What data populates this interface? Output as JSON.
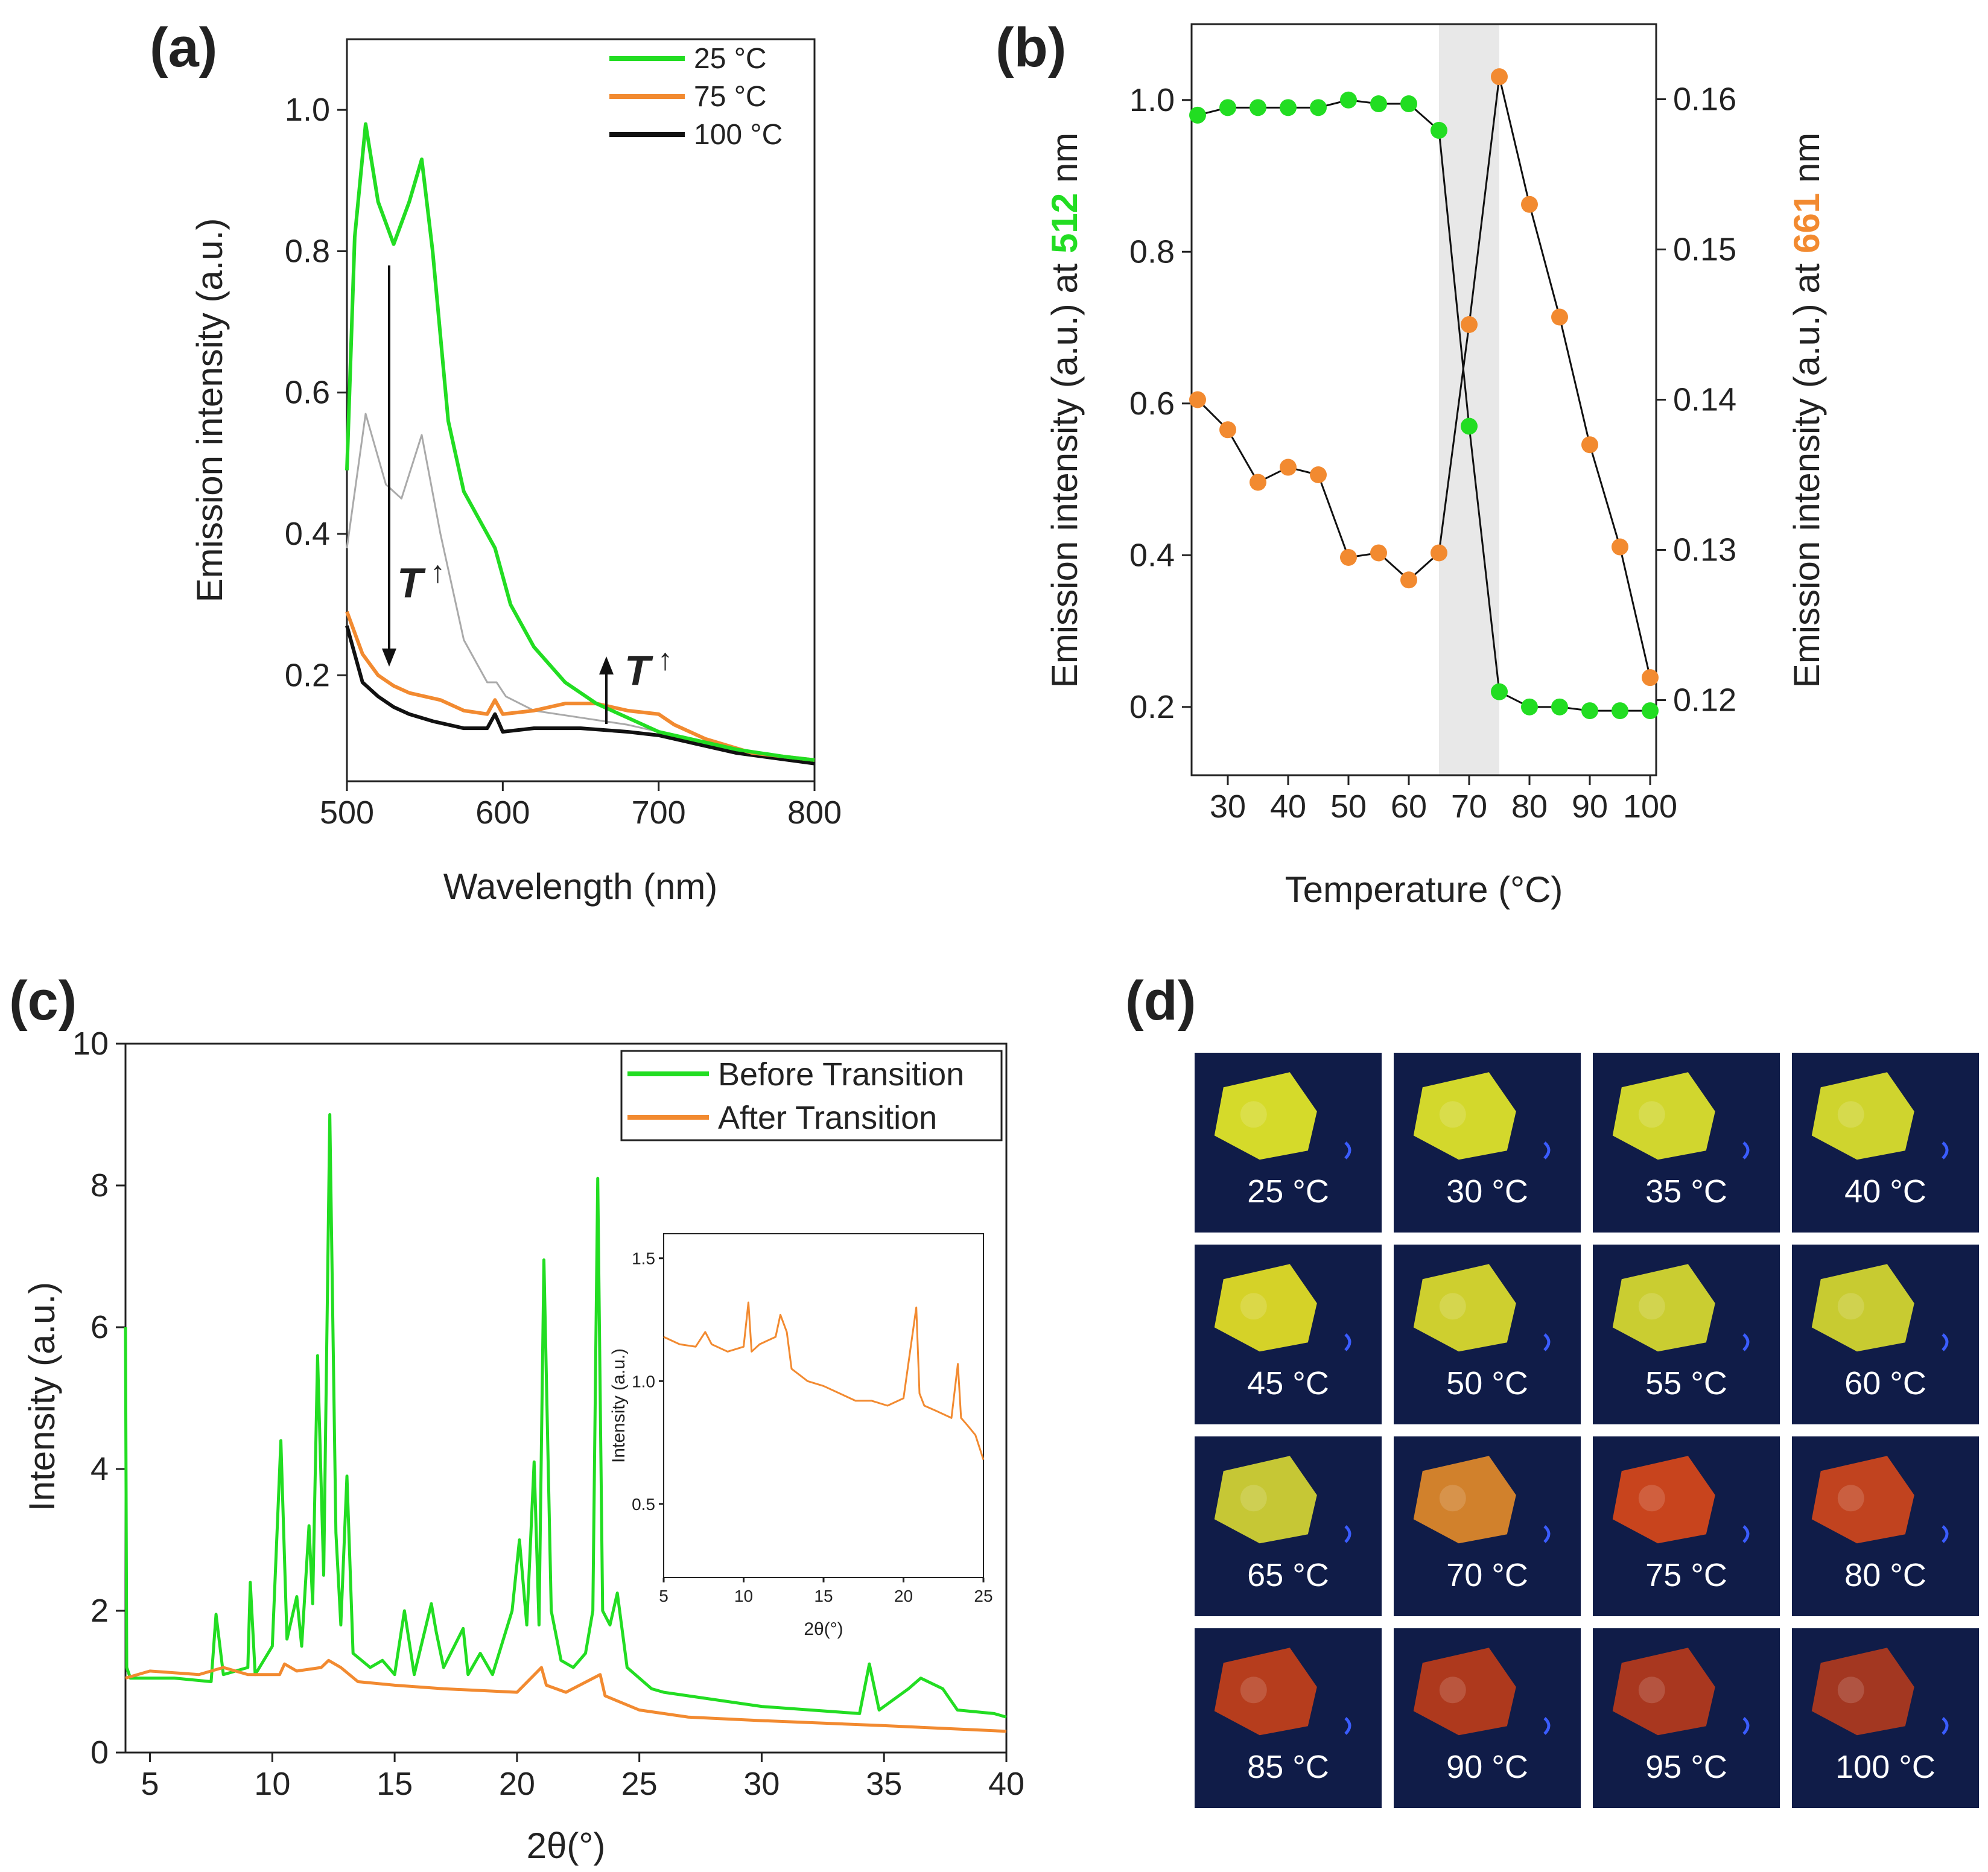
{
  "panel_labels": {
    "a": "(a)",
    "b": "(b)",
    "c": "(c)",
    "d": "(d)"
  },
  "colors": {
    "green": "#22dd22",
    "orange": "#f28a30",
    "black": "#111111",
    "gray": "#aaaaaa",
    "photo_bg": "#101c48"
  },
  "chart_data": [
    {
      "id": "a",
      "type": "line",
      "xlabel": "Wavelength (nm)",
      "ylabel": "Emission intensity (a.u.)",
      "xlim": [
        500,
        800
      ],
      "ylim": [
        0.05,
        1.1
      ],
      "xticks": [
        500,
        600,
        700,
        800
      ],
      "yticks": [
        0.2,
        0.4,
        0.6,
        0.8,
        1.0
      ],
      "annotation_down": "T",
      "annotation_up": "T",
      "series": [
        {
          "name": "25 °C",
          "color": "#22dd22",
          "x": [
            500,
            505,
            512,
            520,
            530,
            540,
            548,
            555,
            565,
            575,
            585,
            595,
            605,
            620,
            640,
            660,
            680,
            700,
            720,
            750,
            780,
            800
          ],
          "y": [
            0.49,
            0.82,
            0.98,
            0.87,
            0.81,
            0.87,
            0.93,
            0.8,
            0.56,
            0.46,
            0.42,
            0.38,
            0.3,
            0.24,
            0.19,
            0.16,
            0.14,
            0.12,
            0.11,
            0.095,
            0.085,
            0.08
          ]
        },
        {
          "name": "75 °C",
          "color": "#f28a30",
          "x": [
            500,
            510,
            520,
            530,
            540,
            550,
            560,
            575,
            590,
            595,
            600,
            620,
            640,
            660,
            680,
            700,
            710,
            730,
            760,
            800
          ],
          "y": [
            0.29,
            0.23,
            0.2,
            0.185,
            0.175,
            0.17,
            0.165,
            0.15,
            0.145,
            0.165,
            0.145,
            0.15,
            0.16,
            0.16,
            0.15,
            0.145,
            0.13,
            0.11,
            0.09,
            0.08
          ]
        },
        {
          "name": "100 °C",
          "color": "#111111",
          "x": [
            500,
            510,
            520,
            530,
            540,
            555,
            575,
            590,
            595,
            600,
            620,
            650,
            680,
            700,
            720,
            750,
            800
          ],
          "y": [
            0.27,
            0.19,
            0.17,
            0.155,
            0.145,
            0.135,
            0.125,
            0.125,
            0.145,
            0.12,
            0.125,
            0.125,
            0.12,
            0.115,
            0.105,
            0.09,
            0.075
          ]
        },
        {
          "name": "",
          "color": "#aaaaaa",
          "x": [
            500,
            512,
            525,
            535,
            548,
            560,
            575,
            590,
            596,
            602,
            620,
            650,
            680,
            720,
            760,
            800
          ],
          "y": [
            0.38,
            0.57,
            0.47,
            0.45,
            0.54,
            0.4,
            0.25,
            0.19,
            0.19,
            0.17,
            0.15,
            0.14,
            0.13,
            0.11,
            0.09,
            0.08
          ]
        }
      ]
    },
    {
      "id": "b",
      "type": "scatter",
      "xlabel": "Temperature (°C)",
      "ylabel_parts": [
        "Emission intensity (a.u.) at ",
        "512",
        " nm"
      ],
      "y2label_parts": [
        "Emission intensity (a.u.) at ",
        "661",
        " nm"
      ],
      "xlim": [
        24,
        101
      ],
      "ylim": [
        0.11,
        1.1
      ],
      "y2lim": [
        0.115,
        0.165
      ],
      "xticks": [
        30,
        40,
        50,
        60,
        70,
        80,
        90,
        100
      ],
      "yticks": [
        0.2,
        0.4,
        0.6,
        0.8,
        1.0
      ],
      "y2ticks": [
        0.12,
        0.13,
        0.14,
        0.15,
        0.16
      ],
      "highlight_band": [
        65,
        75
      ],
      "series": [
        {
          "name": "512 nm",
          "axis": "left",
          "color": "#22dd22",
          "x": [
            25,
            30,
            35,
            40,
            45,
            50,
            55,
            60,
            65,
            70,
            75,
            80,
            85,
            90,
            95,
            100
          ],
          "y": [
            0.98,
            0.99,
            0.99,
            0.99,
            0.99,
            1.0,
            0.995,
            0.995,
            0.96,
            0.57,
            0.22,
            0.2,
            0.2,
            0.195,
            0.195,
            0.195
          ]
        },
        {
          "name": "661 nm",
          "axis": "right",
          "color": "#f28a30",
          "x": [
            25,
            30,
            35,
            40,
            45,
            50,
            55,
            60,
            65,
            70,
            75,
            80,
            85,
            90,
            95,
            100
          ],
          "y": [
            0.14,
            0.138,
            0.1345,
            0.1355,
            0.135,
            0.1295,
            0.1298,
            0.128,
            0.1298,
            0.145,
            0.1615,
            0.153,
            0.1455,
            0.137,
            0.1302,
            0.1215
          ]
        }
      ]
    },
    {
      "id": "c",
      "type": "line",
      "xlabel": "2θ(°)",
      "ylabel": "Intensity (a.u.)",
      "xlim": [
        4,
        40
      ],
      "ylim": [
        0,
        10
      ],
      "xticks": [
        5,
        10,
        15,
        20,
        25,
        30,
        35,
        40
      ],
      "yticks": [
        0,
        2,
        4,
        6,
        8,
        10
      ],
      "series": [
        {
          "name": "Before Transition",
          "color": "#22dd22",
          "x": [
            4,
            4.05,
            4.2,
            5,
            6,
            7.5,
            7.7,
            8,
            9,
            9.1,
            9.3,
            10,
            10.35,
            10.6,
            11,
            11.2,
            11.5,
            11.65,
            11.85,
            12.1,
            12.35,
            12.6,
            12.8,
            13.05,
            13.3,
            14,
            14.5,
            15,
            15.4,
            15.8,
            16.5,
            16.7,
            17,
            17.8,
            18,
            18.5,
            19,
            19.8,
            20.1,
            20.4,
            20.7,
            20.9,
            21.1,
            21.4,
            21.8,
            22.3,
            22.8,
            23.1,
            23.3,
            23.5,
            23.8,
            24.1,
            24.5,
            25.5,
            26,
            27,
            28,
            29,
            30,
            32,
            34,
            34.4,
            34.8,
            36,
            36.5,
            37.4,
            38,
            39.5,
            40
          ],
          "y": [
            6.0,
            1.2,
            1.05,
            1.05,
            1.05,
            1.0,
            1.95,
            1.1,
            1.2,
            2.4,
            1.1,
            1.5,
            4.4,
            1.6,
            2.2,
            1.5,
            3.2,
            2.1,
            5.6,
            2.5,
            9.0,
            3.1,
            1.8,
            3.9,
            1.4,
            1.2,
            1.3,
            1.1,
            2.0,
            1.1,
            2.1,
            1.7,
            1.2,
            1.75,
            1.1,
            1.4,
            1.1,
            2.0,
            3.0,
            1.8,
            4.1,
            1.8,
            6.95,
            2.0,
            1.3,
            1.2,
            1.4,
            2.0,
            8.1,
            2.0,
            1.8,
            2.25,
            1.2,
            0.9,
            0.85,
            0.8,
            0.75,
            0.7,
            0.65,
            0.6,
            0.55,
            1.25,
            0.6,
            0.9,
            1.05,
            0.9,
            0.6,
            0.55,
            0.5
          ]
        },
        {
          "name": "After Transition",
          "color": "#f28a30",
          "x": [
            4,
            5,
            7,
            8,
            9,
            10.3,
            10.5,
            11,
            12,
            12.3,
            12.8,
            13.5,
            15,
            17,
            20,
            21,
            21.2,
            22,
            23.4,
            23.6,
            25,
            27,
            30,
            35,
            40
          ],
          "y": [
            1.05,
            1.15,
            1.1,
            1.2,
            1.1,
            1.1,
            1.25,
            1.15,
            1.2,
            1.3,
            1.2,
            1.0,
            0.95,
            0.9,
            0.85,
            1.2,
            0.95,
            0.85,
            1.1,
            0.8,
            0.6,
            0.5,
            0.45,
            0.38,
            0.3
          ]
        }
      ],
      "inset": {
        "type": "line",
        "xlabel": "2θ(°)",
        "ylabel": "Intensity (a.u.)",
        "xlim": [
          5,
          25
        ],
        "ylim": [
          0.2,
          1.6
        ],
        "xticks": [
          5,
          10,
          15,
          20,
          25
        ],
        "yticks": [
          0.5,
          1.0,
          1.5
        ],
        "series": [
          {
            "name": "After Transition",
            "color": "#f28a30",
            "x": [
              5,
              6,
              7,
              7.6,
              8,
              9,
              10,
              10.3,
              10.5,
              11,
              12,
              12.3,
              12.7,
              13,
              14,
              15,
              16,
              17,
              18,
              19,
              20,
              20.8,
              21,
              21.3,
              22,
              23,
              23.4,
              23.6,
              24,
              24.5,
              25
            ],
            "y": [
              1.18,
              1.15,
              1.14,
              1.2,
              1.15,
              1.12,
              1.14,
              1.32,
              1.12,
              1.15,
              1.18,
              1.27,
              1.2,
              1.05,
              1.0,
              0.98,
              0.95,
              0.92,
              0.92,
              0.9,
              0.93,
              1.3,
              0.95,
              0.9,
              0.88,
              0.85,
              1.07,
              0.85,
              0.82,
              0.78,
              0.68
            ]
          }
        ]
      }
    }
  ],
  "photo_grid": {
    "labels": [
      "25 °C",
      "30 °C",
      "35 °C",
      "40 °C",
      "45 °C",
      "50 °C",
      "55 °C",
      "60 °C",
      "65 °C",
      "70 °C",
      "75 °C",
      "80 °C",
      "85 °C",
      "90 °C",
      "95 °C",
      "100 °C"
    ],
    "sample_colors": [
      "#e6ea28",
      "#e4e82a",
      "#e2e62c",
      "#e0e42c",
      "#e6e226",
      "#dede2e",
      "#dadc30",
      "#d8da30",
      "#d6d634",
      "#e28a2a",
      "#d8481a",
      "#d0461c",
      "#c4401a",
      "#bc3c1a",
      "#b63a1c",
      "#b03a1e"
    ]
  }
}
